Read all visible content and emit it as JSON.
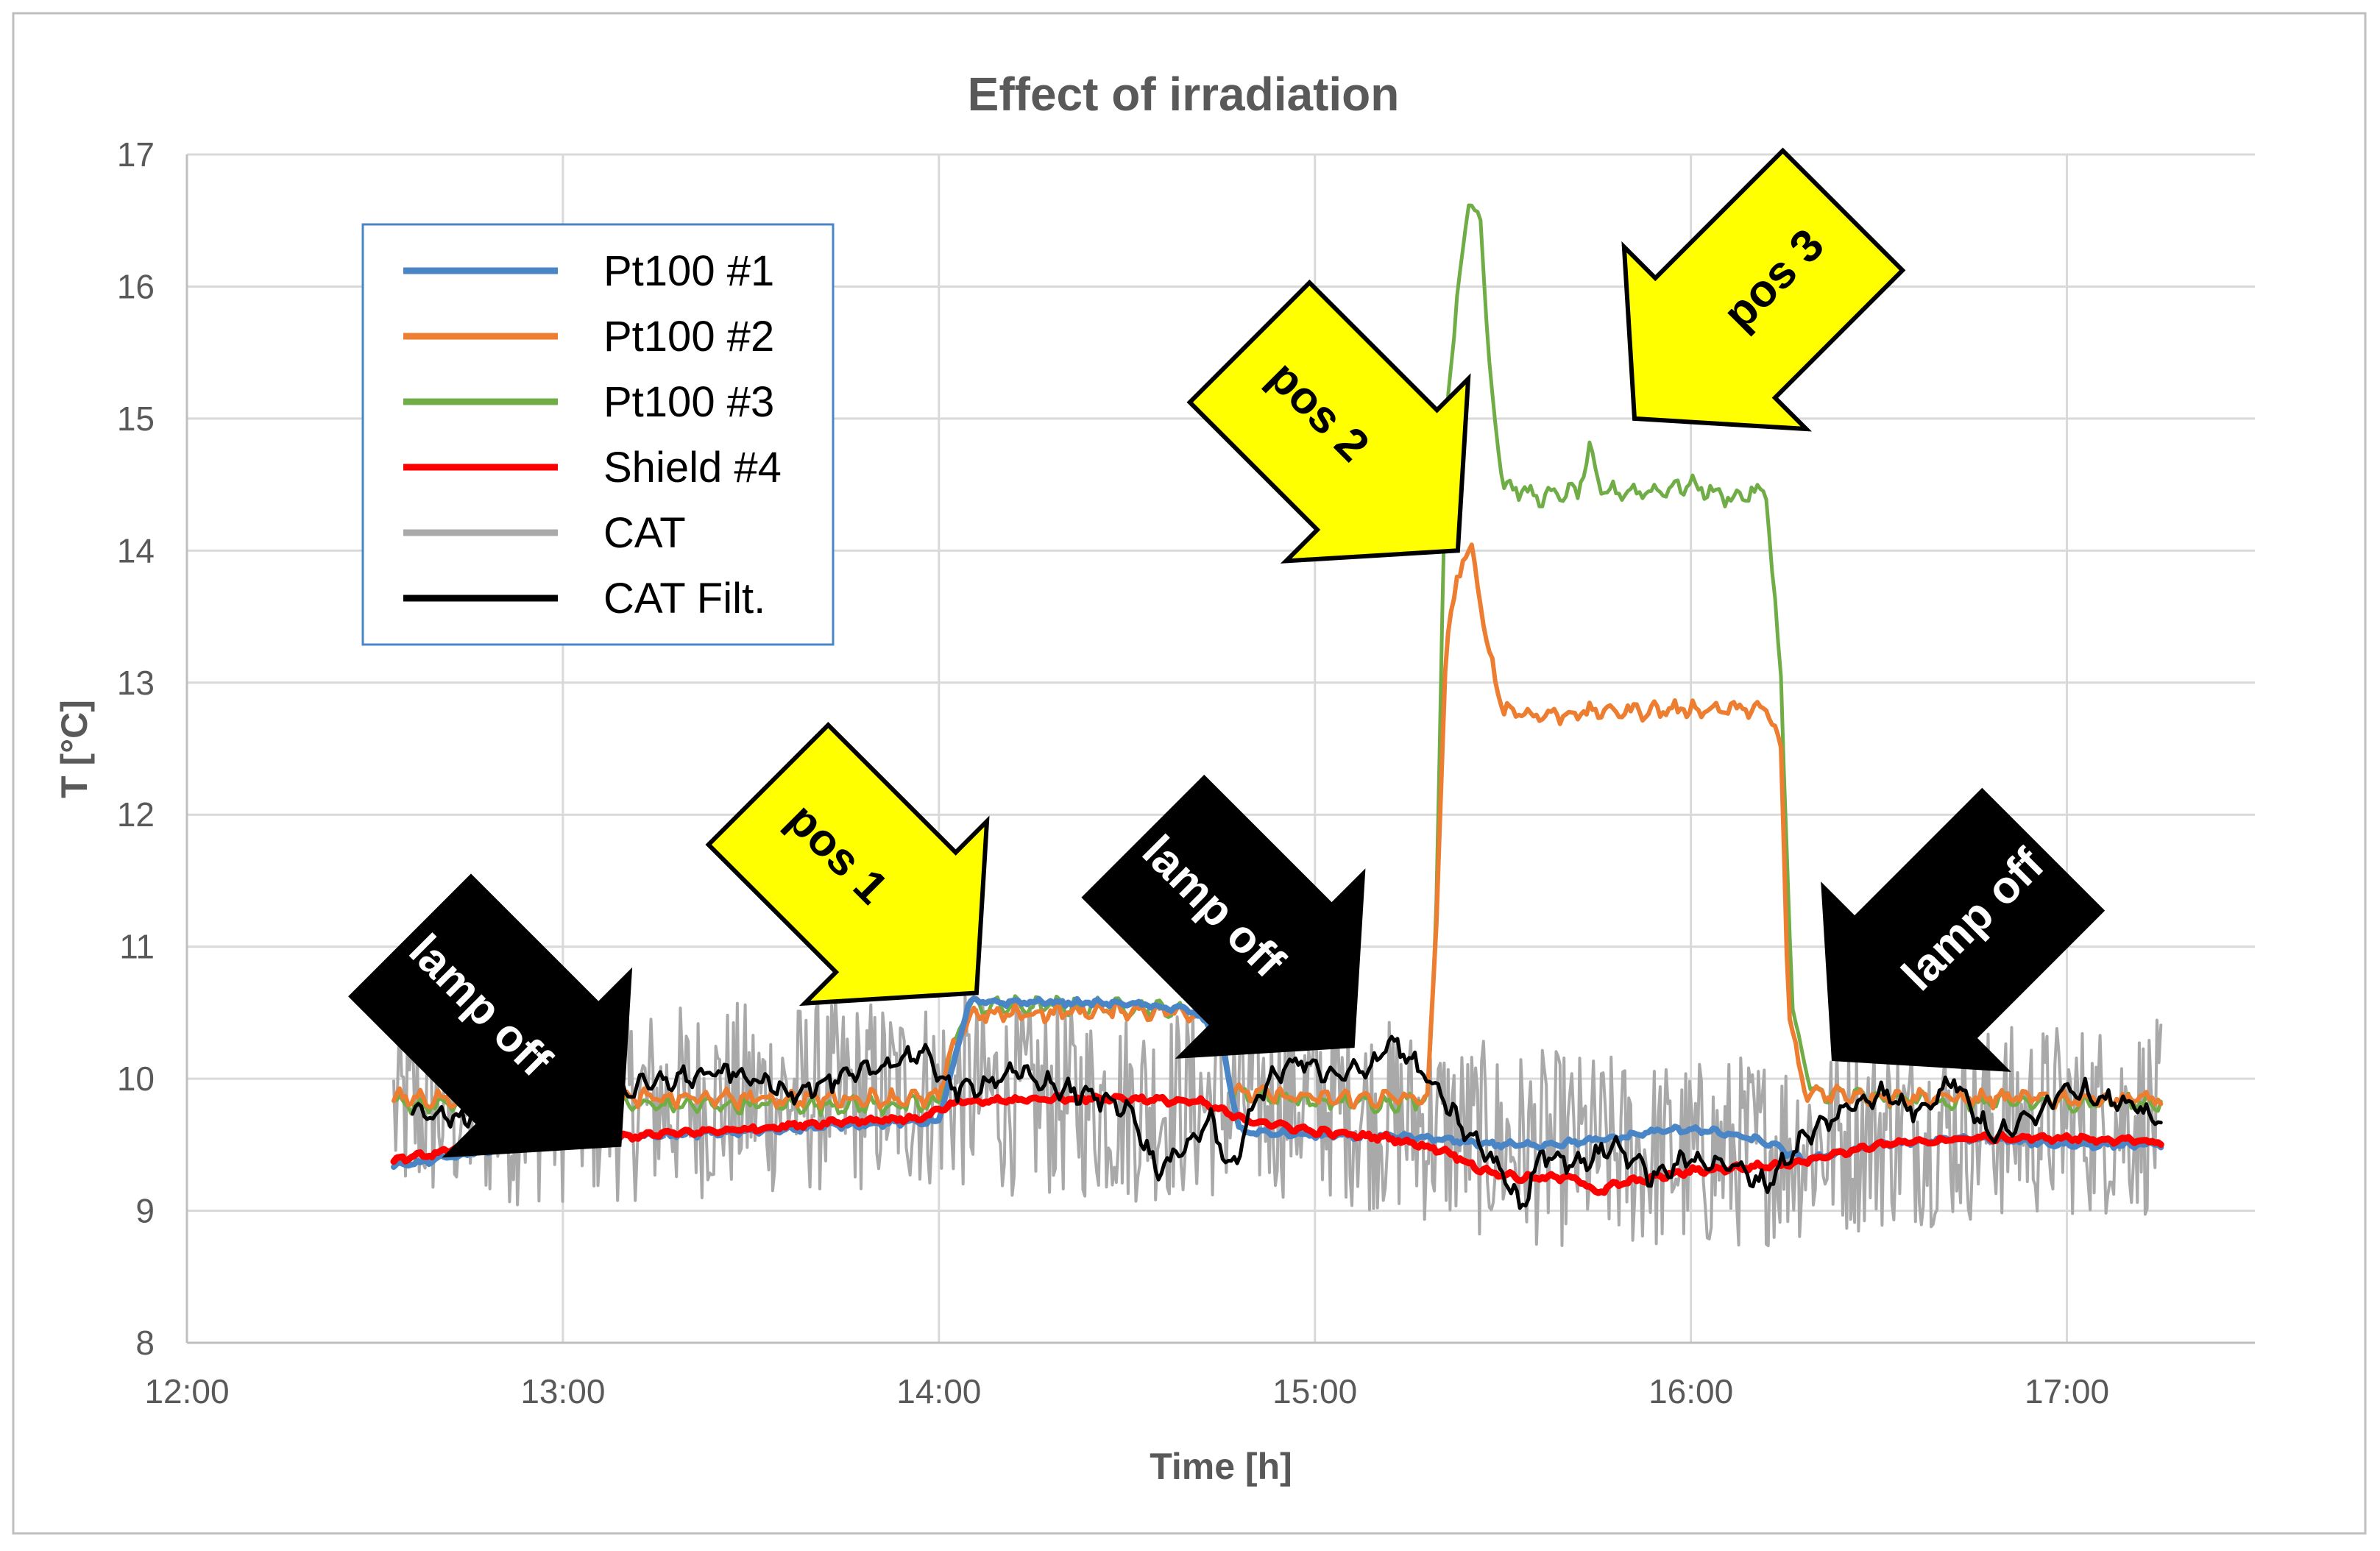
{
  "chart_data": {
    "type": "line",
    "title": "Effect of irradiation",
    "xlabel": "Time [h]",
    "ylabel": "T [°C]",
    "xlim": [
      12.0,
      17.5
    ],
    "ylim": [
      8,
      17
    ],
    "x_unit": "hours of day",
    "xticks": [
      12,
      13,
      14,
      15,
      16,
      17
    ],
    "xtick_labels": [
      "12:00",
      "13:00",
      "14:00",
      "15:00",
      "16:00",
      "17:00"
    ],
    "yticks": [
      8,
      9,
      10,
      11,
      12,
      13,
      14,
      15,
      16,
      17
    ],
    "ytick_labels": [
      "8",
      "9",
      "10",
      "11",
      "12",
      "13",
      "14",
      "15",
      "16",
      "17"
    ],
    "grid": true,
    "legend_position": "top-left",
    "series": [
      {
        "name": "Pt100 #1",
        "color": "#4a86c6",
        "x": [
          12.55,
          12.75,
          13.0,
          13.25,
          13.5,
          13.75,
          14.0,
          14.02,
          14.08,
          14.3,
          14.5,
          14.67,
          14.72,
          14.75,
          14.8,
          15.0,
          15.2,
          15.3,
          15.4,
          15.5,
          15.6,
          15.7,
          15.8,
          15.9,
          16.0,
          16.1,
          16.2,
          16.25,
          16.3,
          16.5,
          16.75,
          17.0,
          17.25
        ],
        "y": [
          9.33,
          9.43,
          9.52,
          9.57,
          9.6,
          9.65,
          9.68,
          9.9,
          10.58,
          10.58,
          10.57,
          10.52,
          10.4,
          10.3,
          9.6,
          9.57,
          9.56,
          9.55,
          9.52,
          9.5,
          9.5,
          9.52,
          9.55,
          9.6,
          9.62,
          9.58,
          9.52,
          9.45,
          9.38,
          9.5,
          9.55,
          9.5,
          9.5
        ]
      },
      {
        "name": "Pt100 #2",
        "color": "#ed7d31",
        "x": [
          12.55,
          13.0,
          13.5,
          14.0,
          14.02,
          14.08,
          14.3,
          14.5,
          14.7,
          14.75,
          14.78,
          15.0,
          15.2,
          15.3,
          15.32,
          15.35,
          15.38,
          15.42,
          15.45,
          15.5,
          15.6,
          15.75,
          16.0,
          16.2,
          16.24,
          16.26,
          16.3,
          16.5,
          16.75,
          17.0,
          17.25
        ],
        "y": [
          9.85,
          9.85,
          9.85,
          9.85,
          10.1,
          10.48,
          10.5,
          10.52,
          10.5,
          10.35,
          9.9,
          9.85,
          9.85,
          9.85,
          11.0,
          13.3,
          13.85,
          14.0,
          13.4,
          12.8,
          12.75,
          12.78,
          12.8,
          12.8,
          12.5,
          10.5,
          9.9,
          9.87,
          9.85,
          9.85,
          9.85
        ]
      },
      {
        "name": "Pt100 #3",
        "color": "#70ad47",
        "x": [
          12.55,
          13.0,
          13.5,
          14.0,
          14.02,
          14.08,
          14.3,
          14.5,
          14.7,
          14.75,
          14.78,
          15.0,
          15.2,
          15.3,
          15.32,
          15.35,
          15.38,
          15.41,
          15.44,
          15.46,
          15.5,
          15.6,
          15.7,
          15.73,
          15.76,
          15.9,
          16.0,
          16.1,
          16.2,
          16.24,
          16.27,
          16.32,
          16.5,
          16.75,
          17.0,
          17.25
        ],
        "y": [
          9.8,
          9.8,
          9.8,
          9.8,
          10.1,
          10.55,
          10.55,
          10.55,
          10.5,
          10.4,
          9.9,
          9.82,
          9.82,
          9.85,
          11.0,
          15.0,
          16.0,
          16.6,
          16.6,
          15.5,
          14.5,
          14.4,
          14.45,
          14.75,
          14.45,
          14.45,
          14.5,
          14.4,
          14.45,
          13.0,
          10.5,
          9.9,
          9.85,
          9.82,
          9.82,
          9.82
        ]
      },
      {
        "name": "Shield #4",
        "color": "#ff0000",
        "x": [
          12.55,
          12.75,
          13.0,
          13.25,
          13.5,
          13.75,
          13.95,
          14.05,
          14.3,
          14.5,
          14.7,
          14.8,
          15.0,
          15.2,
          15.35,
          15.45,
          15.55,
          15.7,
          15.75,
          15.8,
          16.0,
          16.25,
          16.5,
          16.75,
          17.0,
          17.25
        ],
        "y": [
          9.38,
          9.48,
          9.52,
          9.58,
          9.62,
          9.68,
          9.7,
          9.82,
          9.85,
          9.85,
          9.82,
          9.7,
          9.6,
          9.55,
          9.45,
          9.3,
          9.25,
          9.25,
          9.13,
          9.2,
          9.3,
          9.35,
          9.5,
          9.55,
          9.55,
          9.52
        ]
      },
      {
        "name": "CAT",
        "color": "#a9a9a9",
        "noise_amplitude": 0.75,
        "x": [
          12.55,
          13.0,
          13.5,
          14.0,
          14.5,
          15.0,
          15.5,
          16.0,
          16.5,
          17.0,
          17.25
        ],
        "y": [
          9.75,
          9.8,
          9.85,
          9.9,
          9.8,
          9.85,
          9.5,
          9.4,
          9.6,
          9.7,
          9.7
        ]
      },
      {
        "name": "CAT Filt.",
        "color": "#000000",
        "x": [
          12.6,
          12.75,
          12.9,
          13.0,
          13.15,
          13.3,
          13.45,
          13.6,
          13.75,
          13.85,
          13.95,
          14.05,
          14.2,
          14.35,
          14.5,
          14.58,
          14.65,
          14.72,
          14.78,
          14.85,
          14.95,
          15.05,
          15.15,
          15.2,
          15.3,
          15.4,
          15.5,
          15.55,
          15.6,
          15.7,
          15.8,
          15.9,
          16.0,
          16.1,
          16.2,
          16.3,
          16.4,
          16.5,
          16.6,
          16.7,
          16.8,
          16.9,
          17.0,
          17.1,
          17.25
        ],
        "y": [
          9.75,
          9.7,
          9.85,
          9.95,
          9.9,
          10.0,
          10.05,
          9.9,
          10.0,
          10.1,
          10.2,
          9.9,
          10.05,
          9.9,
          9.8,
          9.3,
          9.45,
          9.7,
          9.3,
          9.9,
          10.15,
          10.0,
          10.1,
          10.3,
          10.0,
          9.6,
          9.3,
          9.0,
          9.45,
          9.35,
          9.5,
          9.25,
          9.4,
          9.35,
          9.2,
          9.55,
          9.75,
          9.9,
          9.75,
          10.0,
          9.55,
          9.7,
          9.95,
          9.85,
          9.7
        ]
      }
    ],
    "annotations": [
      {
        "text": "lamp off",
        "style": "black-arrow",
        "points_to": [
          13.15,
          9.5
        ]
      },
      {
        "text": "pos 1",
        "style": "yellow-arrow",
        "points_to": [
          14.1,
          10.65
        ]
      },
      {
        "text": "lamp off",
        "style": "black-arrow",
        "points_to": [
          15.1,
          10.25
        ]
      },
      {
        "text": "pos 2",
        "style": "yellow-arrow",
        "points_to": [
          15.38,
          14.0
        ]
      },
      {
        "text": "pos 3",
        "style": "yellow-arrow",
        "points_to": [
          15.85,
          15.0
        ]
      },
      {
        "text": "lamp off",
        "style": "black-arrow",
        "points_to": [
          16.38,
          10.15
        ]
      }
    ]
  }
}
